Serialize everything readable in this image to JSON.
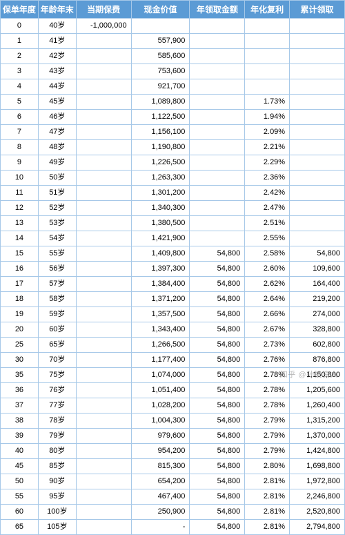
{
  "table": {
    "header_bg": "#5b9bd5",
    "header_fg": "#ffffff",
    "border_color": "#a6c8e8",
    "font_family": "Microsoft YaHei",
    "header_fontsize": 12,
    "cell_fontsize": 11,
    "columns": [
      {
        "label": "保单年度",
        "align": "center",
        "width": "11%"
      },
      {
        "label": "年龄年末",
        "align": "center",
        "width": "11%"
      },
      {
        "label": "当期保费",
        "align": "right",
        "width": "16%"
      },
      {
        "label": "现金价值",
        "align": "right",
        "width": "17%"
      },
      {
        "label": "年领取金额",
        "align": "right",
        "width": "16%"
      },
      {
        "label": "年化复利",
        "align": "right",
        "width": "13%"
      },
      {
        "label": "累计领取",
        "align": "right",
        "width": "16%"
      }
    ],
    "rows": [
      [
        "0",
        "40岁",
        "-1,000,000",
        "",
        "",
        "",
        ""
      ],
      [
        "1",
        "41岁",
        "",
        "557,900",
        "",
        "",
        ""
      ],
      [
        "2",
        "42岁",
        "",
        "585,600",
        "",
        "",
        ""
      ],
      [
        "3",
        "43岁",
        "",
        "753,600",
        "",
        "",
        ""
      ],
      [
        "4",
        "44岁",
        "",
        "921,700",
        "",
        "",
        ""
      ],
      [
        "5",
        "45岁",
        "",
        "1,089,800",
        "",
        "1.73%",
        ""
      ],
      [
        "6",
        "46岁",
        "",
        "1,122,500",
        "",
        "1.94%",
        ""
      ],
      [
        "7",
        "47岁",
        "",
        "1,156,100",
        "",
        "2.09%",
        ""
      ],
      [
        "8",
        "48岁",
        "",
        "1,190,800",
        "",
        "2.21%",
        ""
      ],
      [
        "9",
        "49岁",
        "",
        "1,226,500",
        "",
        "2.29%",
        ""
      ],
      [
        "10",
        "50岁",
        "",
        "1,263,300",
        "",
        "2.36%",
        ""
      ],
      [
        "11",
        "51岁",
        "",
        "1,301,200",
        "",
        "2.42%",
        ""
      ],
      [
        "12",
        "52岁",
        "",
        "1,340,300",
        "",
        "2.47%",
        ""
      ],
      [
        "13",
        "53岁",
        "",
        "1,380,500",
        "",
        "2.51%",
        ""
      ],
      [
        "14",
        "54岁",
        "",
        "1,421,900",
        "",
        "2.55%",
        ""
      ],
      [
        "15",
        "55岁",
        "",
        "1,409,800",
        "54,800",
        "2.58%",
        "54,800"
      ],
      [
        "16",
        "56岁",
        "",
        "1,397,300",
        "54,800",
        "2.60%",
        "109,600"
      ],
      [
        "17",
        "57岁",
        "",
        "1,384,400",
        "54,800",
        "2.62%",
        "164,400"
      ],
      [
        "18",
        "58岁",
        "",
        "1,371,200",
        "54,800",
        "2.64%",
        "219,200"
      ],
      [
        "19",
        "59岁",
        "",
        "1,357,500",
        "54,800",
        "2.66%",
        "274,000"
      ],
      [
        "20",
        "60岁",
        "",
        "1,343,400",
        "54,800",
        "2.67%",
        "328,800"
      ],
      [
        "25",
        "65岁",
        "",
        "1,266,500",
        "54,800",
        "2.73%",
        "602,800"
      ],
      [
        "30",
        "70岁",
        "",
        "1,177,400",
        "54,800",
        "2.76%",
        "876,800"
      ],
      [
        "35",
        "75岁",
        "",
        "1,074,000",
        "54,800",
        "2.78%",
        "1,150,800"
      ],
      [
        "36",
        "76岁",
        "",
        "1,051,400",
        "54,800",
        "2.78%",
        "1,205,600"
      ],
      [
        "37",
        "77岁",
        "",
        "1,028,200",
        "54,800",
        "2.78%",
        "1,260,400"
      ],
      [
        "38",
        "78岁",
        "",
        "1,004,300",
        "54,800",
        "2.79%",
        "1,315,200"
      ],
      [
        "39",
        "79岁",
        "",
        "979,600",
        "54,800",
        "2.79%",
        "1,370,000"
      ],
      [
        "40",
        "80岁",
        "",
        "954,200",
        "54,800",
        "2.79%",
        "1,424,800"
      ],
      [
        "45",
        "85岁",
        "",
        "815,300",
        "54,800",
        "2.80%",
        "1,698,800"
      ],
      [
        "50",
        "90岁",
        "",
        "654,200",
        "54,800",
        "2.81%",
        "1,972,800"
      ],
      [
        "55",
        "95岁",
        "",
        "467,400",
        "54,800",
        "2.81%",
        "2,246,800"
      ],
      [
        "60",
        "100岁",
        "",
        "250,900",
        "54,800",
        "2.81%",
        "2,520,800"
      ],
      [
        "65",
        "105岁",
        "",
        "-",
        "54,800",
        "2.81%",
        "2,794,800"
      ]
    ]
  },
  "watermark": "知乎 @孙投资人"
}
